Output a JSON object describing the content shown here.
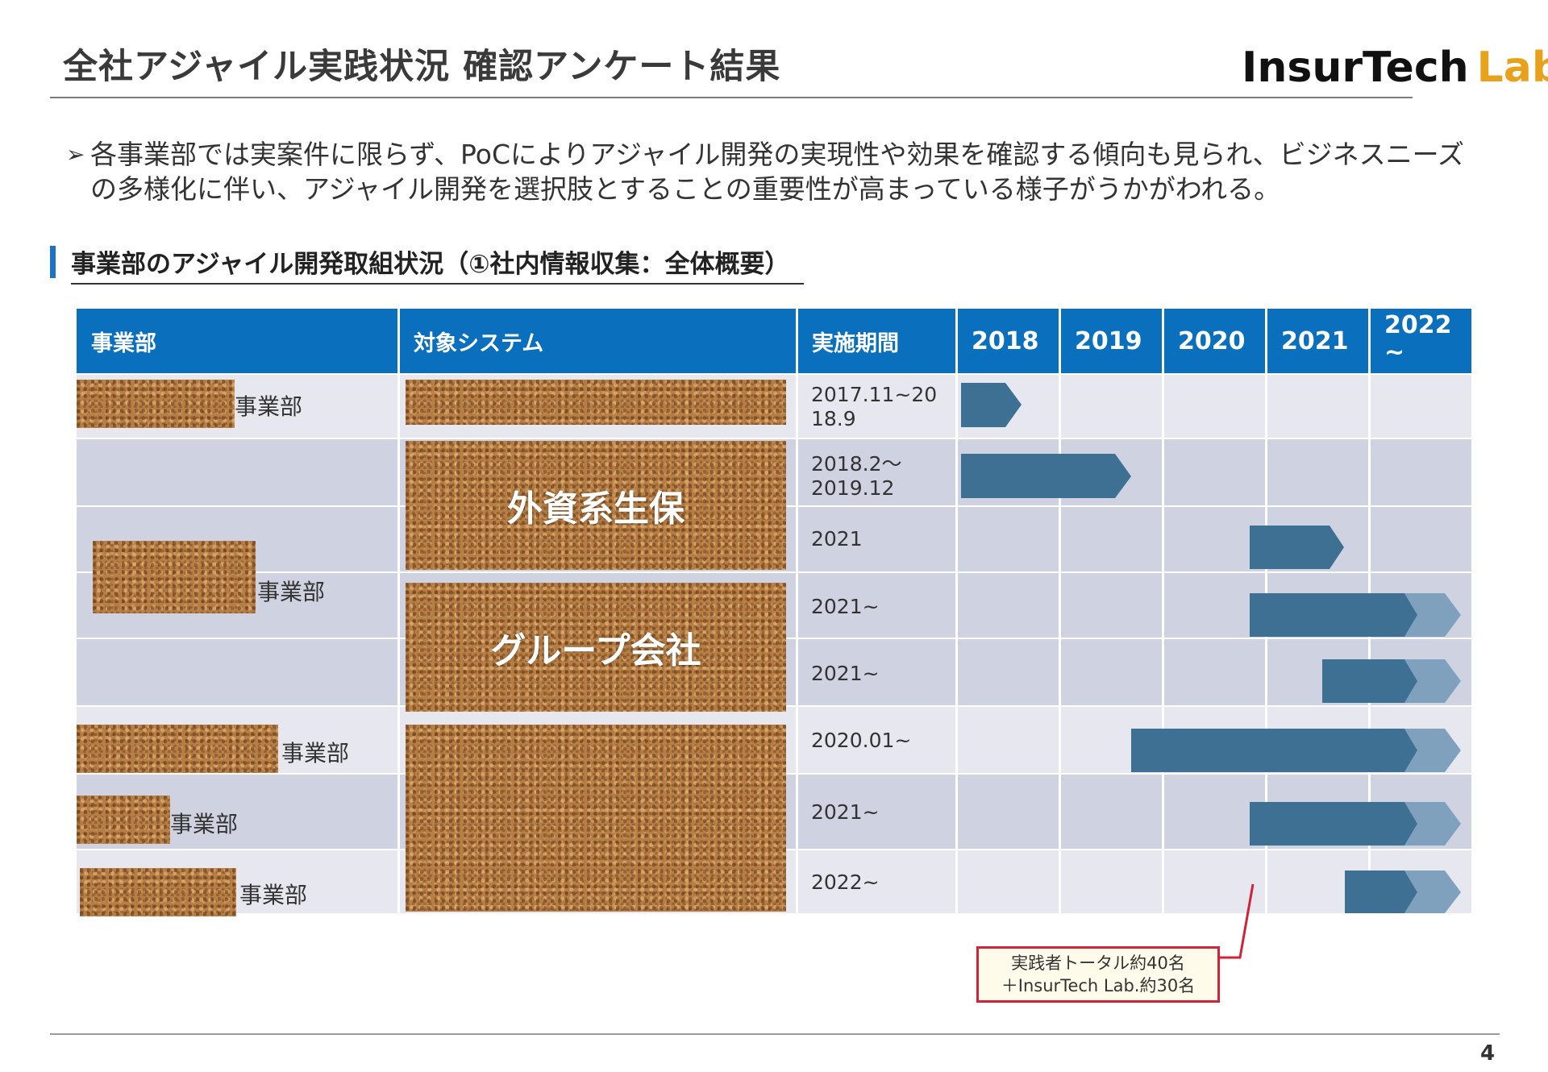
{
  "header": {
    "title": "全社アジャイル実践状況 確認アンケート結果",
    "logo_main": "InsurTech",
    "logo_accent": "Lab.",
    "page_number": "4"
  },
  "summary": {
    "bullet_marker": "➢",
    "text": "各事業部では実案件に限らず、PoCによりアジャイル開発の実現性や効果を確認する傾向も見られ、ビジネスニーズの多様化に伴い、アジャイル開発を選択肢とすることの重要性が高まっている様子がうかがわれる。"
  },
  "section": {
    "title": "事業部のアジャイル開発取組状況（①社内情報収集：全体概要）"
  },
  "table": {
    "headers": {
      "department": "事業部",
      "system": "対象システム",
      "period": "実施期間",
      "years": [
        "2018",
        "2019",
        "2020",
        "2021",
        "2022\n~"
      ]
    },
    "department_suffix": "事業部",
    "system_labels": [
      "外資系生保",
      "グループ会社"
    ],
    "periods": [
      "2017.11~2018.9",
      "2018.2〜2019.12",
      "2021",
      "2021~",
      "2021~",
      "2020.01~",
      "2021~",
      "2022~"
    ],
    "period_lines": [
      [
        "2017.11~20",
        "18.9"
      ],
      [
        "2018.2〜",
        "2019.12"
      ],
      [
        "2021"
      ],
      [
        "2021~"
      ],
      [
        "2021~"
      ],
      [
        "2020.01~"
      ],
      [
        "2021~"
      ],
      [
        "2022~"
      ]
    ]
  },
  "callout": {
    "line1": "実践者トータル約40名",
    "line2": "＋InsurTech Lab.約30名"
  },
  "colors": {
    "header_blue": "#0a6fbd",
    "arrow_dark": "#3e7094",
    "arrow_light": "#7fa1bd",
    "callout_border": "#d0233a",
    "logo_accent": "#e8a11a"
  }
}
